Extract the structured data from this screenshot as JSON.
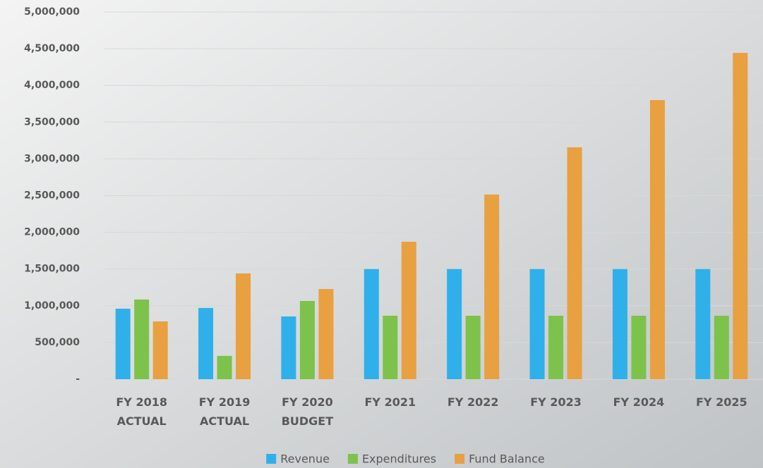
{
  "chart_data": {
    "type": "bar",
    "categories": [
      [
        "FY 2018",
        "ACTUAL"
      ],
      [
        "FY 2019",
        "ACTUAL"
      ],
      [
        "FY 2020",
        "BUDGET"
      ],
      [
        "FY 2021"
      ],
      [
        "FY 2022"
      ],
      [
        "FY 2023"
      ],
      [
        "FY 2024"
      ],
      [
        "FY 2025"
      ]
    ],
    "series": [
      {
        "name": "Revenue",
        "color": "#2fb0ea",
        "values": [
          960000,
          970000,
          854000,
          1500000,
          1500000,
          1500000,
          1500000,
          1500000
        ]
      },
      {
        "name": "Expenditures",
        "color": "#7dc24b",
        "values": [
          1085000,
          317000,
          1065000,
          864000,
          864000,
          864000,
          864000,
          864000
        ]
      },
      {
        "name": "Fund Balance",
        "color": "#e8a040",
        "values": [
          787000,
          1440000,
          1228000,
          1871000,
          2514000,
          3157000,
          3800000,
          4443000
        ]
      }
    ],
    "ylim": [
      0,
      5000000
    ],
    "yticks": [
      {
        "value": 0,
        "label": "-"
      },
      {
        "value": 500000,
        "label": "500,000"
      },
      {
        "value": 1000000,
        "label": "1,000,000"
      },
      {
        "value": 1500000,
        "label": "1,500,000"
      },
      {
        "value": 2000000,
        "label": "2,000,000"
      },
      {
        "value": 2500000,
        "label": "2,500,000"
      },
      {
        "value": 3000000,
        "label": "3,000,000"
      },
      {
        "value": 3500000,
        "label": "3,500,000"
      },
      {
        "value": 4000000,
        "label": "4,000,000"
      },
      {
        "value": 4500000,
        "label": "4,500,000"
      },
      {
        "value": 5000000,
        "label": "5,000,000"
      }
    ],
    "grid": true,
    "legend": "bottom"
  }
}
